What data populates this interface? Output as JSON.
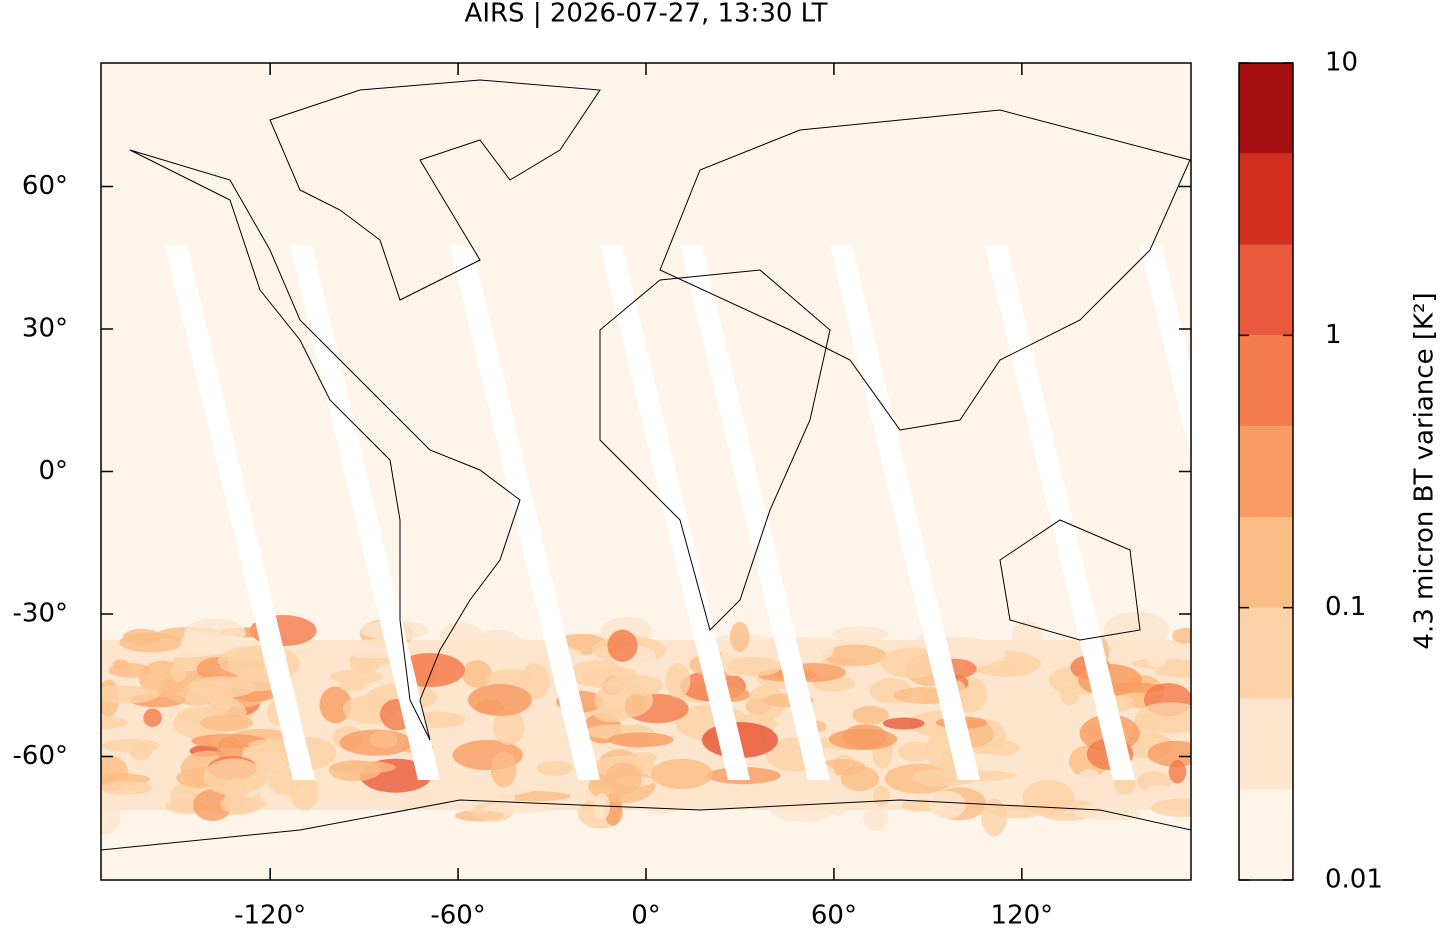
{
  "chart_data": {
    "type": "contour-map",
    "title": "AIRS | 2026-07-27, 13:30 LT",
    "xlim": [
      -174,
      174
    ],
    "xticks": [
      {
        "value": -120,
        "label": "-120°"
      },
      {
        "value": -60,
        "label": "-60°"
      },
      {
        "value": 0,
        "label": "0°"
      },
      {
        "value": 60,
        "label": "60°"
      },
      {
        "value": 120,
        "label": "120°"
      }
    ],
    "ylim": [
      -86,
      86
    ],
    "yticks": [
      {
        "value": -60,
        "label": "-60°"
      },
      {
        "value": -30,
        "label": "-30°"
      },
      {
        "value": 0,
        "label": "0°"
      },
      {
        "value": 30,
        "label": "30°"
      },
      {
        "value": 60,
        "label": "60°"
      }
    ],
    "colorbar": {
      "label": "4.3 micron BT variance [K²]",
      "log": true,
      "lim": [
        0.01,
        10
      ],
      "ticks": [
        0.01,
        0.1,
        1,
        10
      ],
      "levels": [
        0.01,
        0.0215,
        0.0464,
        0.1,
        0.215,
        0.464,
        1,
        2.15,
        4.64,
        10
      ],
      "colors": [
        "#fef5ea",
        "#fde6cd",
        "#fcd2a6",
        "#fbbd86",
        "#f89c63",
        "#f47b4b",
        "#e85a3b",
        "#d22e1f",
        "#a50f0f"
      ]
    }
  }
}
